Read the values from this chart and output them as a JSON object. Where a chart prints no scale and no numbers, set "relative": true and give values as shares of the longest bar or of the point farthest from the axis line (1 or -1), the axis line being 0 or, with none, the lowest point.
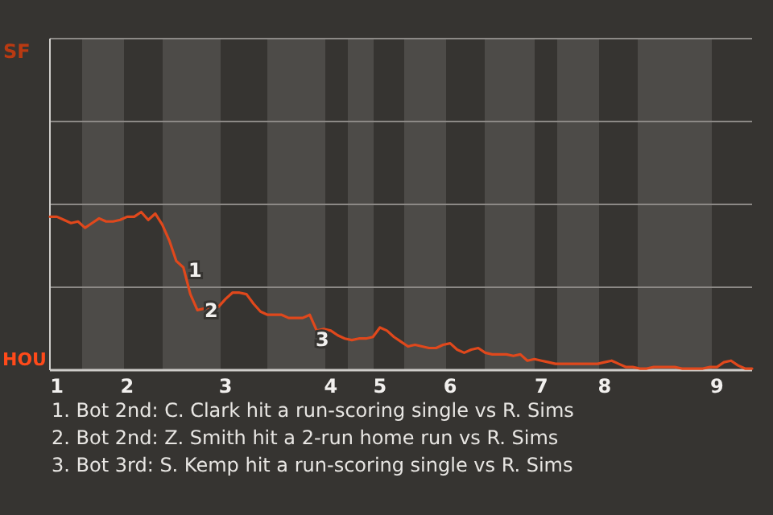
{
  "chart_data": {
    "type": "line",
    "relative": true,
    "ref_lines": [
      {
        "axis": "y",
        "value": 0.524,
        "color": "#8c8986"
      }
    ],
    "categories": [
      null,
      "1",
      null,
      null,
      null,
      null,
      null,
      null,
      null,
      null,
      null,
      "2",
      null,
      null,
      null,
      null,
      null,
      null,
      null,
      null,
      null,
      null,
      null,
      null,
      null,
      "3",
      null,
      null,
      null,
      null,
      null,
      null,
      null,
      null,
      null,
      null,
      null,
      null,
      null,
      null,
      "4",
      null,
      null,
      null,
      null,
      null,
      null,
      "5",
      null,
      null,
      null,
      null,
      null,
      null,
      null,
      null,
      null,
      "6",
      null,
      null,
      null,
      null,
      null,
      null,
      null,
      null,
      null,
      null,
      null,
      null,
      "7",
      null,
      null,
      null,
      null,
      null,
      null,
      null,
      null,
      "8",
      null,
      null,
      null,
      null,
      null,
      null,
      null,
      null,
      null,
      null,
      null,
      null,
      null,
      null,
      null,
      "9",
      null,
      null,
      null,
      null,
      null
    ],
    "series": [
      {
        "color": "#e0481c",
        "values": [
          0.97,
          0.97,
          0.95,
          0.93,
          0.94,
          0.9,
          0.93,
          0.96,
          0.94,
          0.94,
          0.95,
          0.97,
          0.97,
          1,
          0.95,
          0.99,
          0.92,
          0.82,
          0.69,
          0.65,
          0.48,
          0.38,
          0.39,
          0.4,
          0.4,
          0.45,
          0.49,
          0.49,
          0.48,
          0.42,
          0.37,
          0.35,
          0.35,
          0.35,
          0.33,
          0.33,
          0.33,
          0.35,
          0.25,
          0.26,
          0.25,
          0.22,
          0.2,
          0.19,
          0.2,
          0.2,
          0.21,
          0.27,
          0.25,
          0.21,
          0.18,
          0.15,
          0.16,
          0.15,
          0.14,
          0.14,
          0.16,
          0.17,
          0.13,
          0.11,
          0.13,
          0.14,
          0.11,
          0.1,
          0.1,
          0.1,
          0.09,
          0.1,
          0.06,
          0.07,
          0.06,
          0.05,
          0.04,
          0.04,
          0.04,
          0.04,
          0.04,
          0.04,
          0.04,
          0.05,
          0.06,
          0.04,
          0.02,
          0.02,
          0.01,
          0.01,
          0.02,
          0.02,
          0.02,
          0.02,
          0.01,
          0.01,
          0.01,
          0.01,
          0.02,
          0.02,
          0.05,
          0.06,
          0.03,
          0.01,
          0.01
        ]
      }
    ],
    "annotations": [
      "SF",
      "HOU",
      "1",
      "2",
      "3",
      "1. Bot 2nd: C. Clark hit a run-scoring single vs R. Sims",
      "2. Bot 2nd: Z. Smith hit a 2-run home run vs R. Sims",
      "3. Bot 3rd: S. Kemp hit a run-scoring single vs R. Sims"
    ]
  }
}
